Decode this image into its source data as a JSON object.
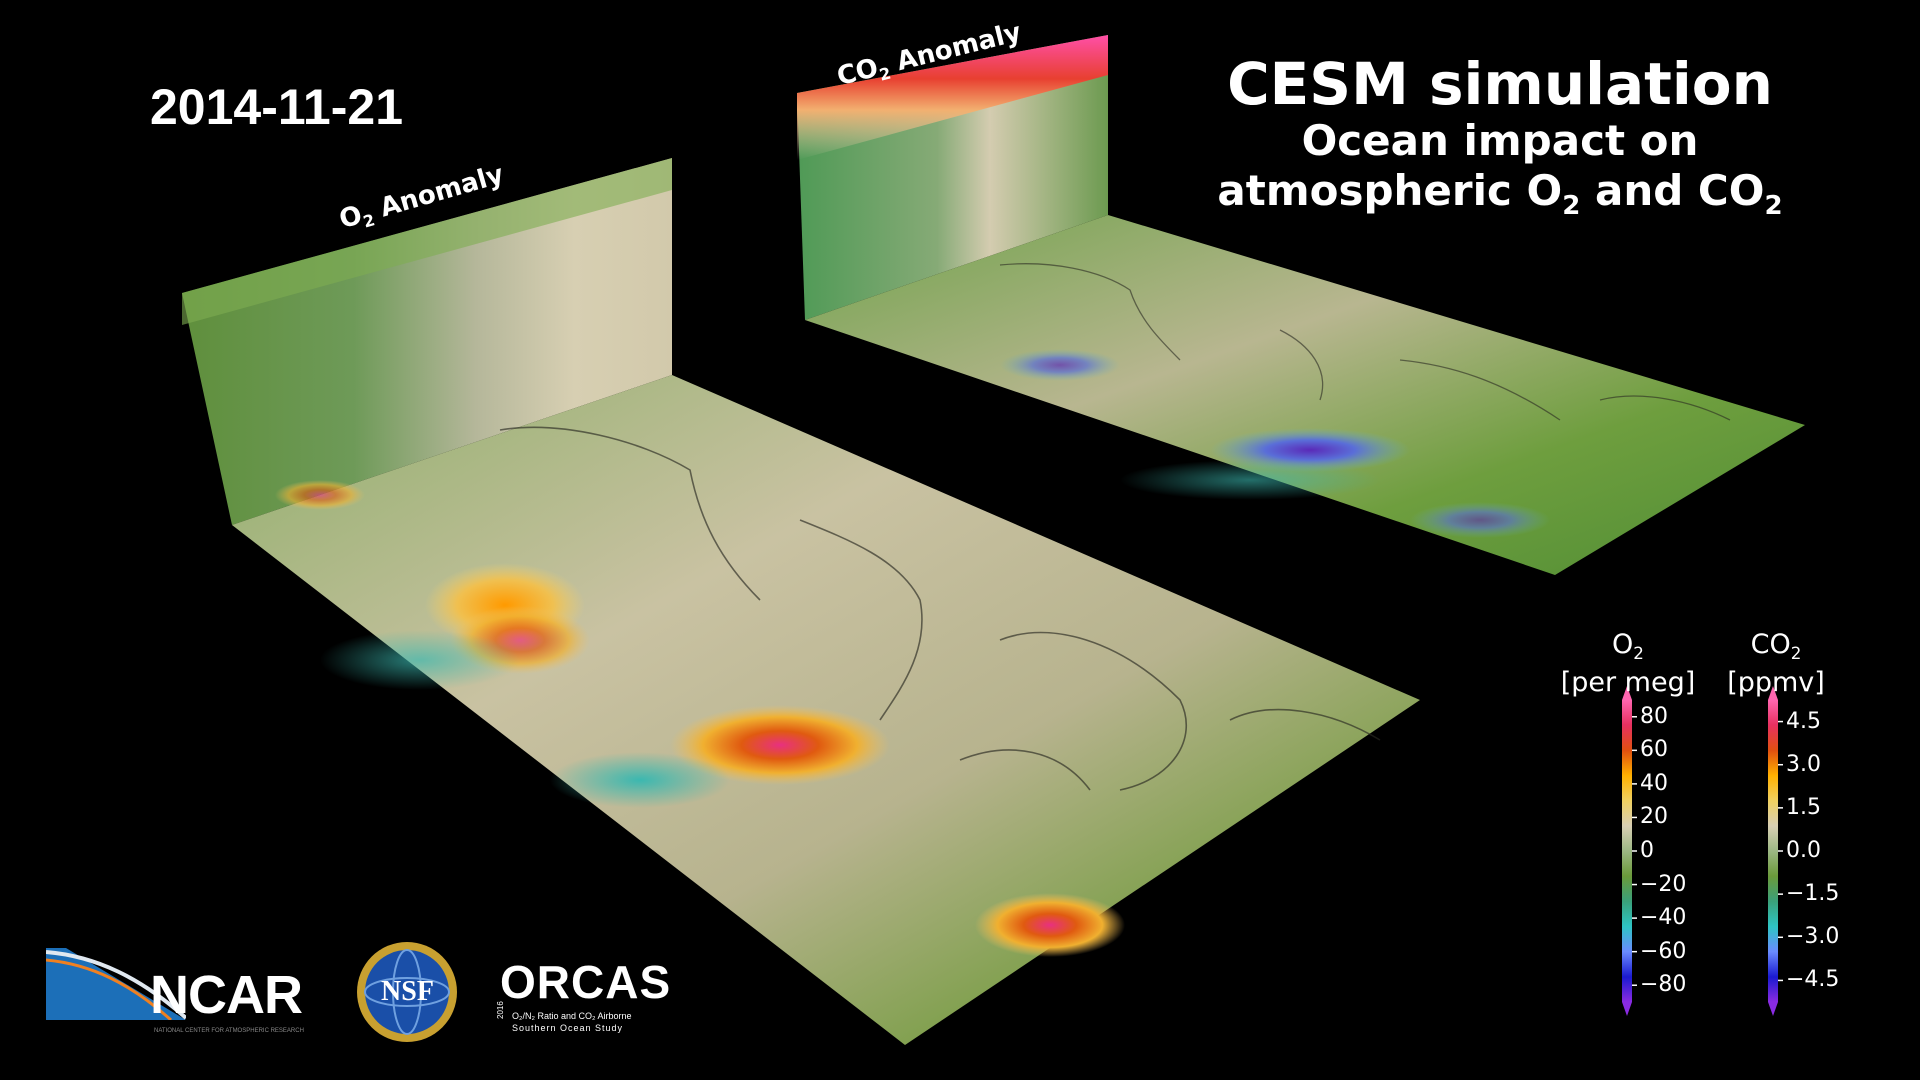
{
  "date": "2014-11-21",
  "title": {
    "line1": "CESM simulation",
    "line2": "Ocean impact on",
    "line3_pre": "atmospheric O",
    "line3_sub1": "2",
    "line3_mid": " and CO",
    "line3_sub2": "2"
  },
  "panels": {
    "o2": {
      "label_main": "O",
      "label_sub": "2",
      "label_rest": " Anomaly"
    },
    "co2": {
      "label_main": "CO",
      "label_sub": "2",
      "label_rest": " Anomaly"
    }
  },
  "colorbars": {
    "o2": {
      "name_main": "O",
      "name_sub": "2",
      "units": "[per meg]",
      "ticks": [
        "80",
        "60",
        "40",
        "20",
        "0",
        "−20",
        "−40",
        "−60",
        "−80"
      ]
    },
    "co2": {
      "name_main": "CO",
      "name_sub": "2",
      "units": "[ppmv]",
      "ticks": [
        "4.5",
        "3.0",
        "1.5",
        "0.0",
        "−1.5",
        "−3.0",
        "−4.5"
      ]
    },
    "palette": [
      "#8a2be2",
      "#1a1ad0",
      "#6a8cff",
      "#2ec4c4",
      "#3aa07a",
      "#6b9a3a",
      "#9cb884",
      "#d8cfb4",
      "#f0d060",
      "#ffb000",
      "#e05010",
      "#e83060",
      "#ff66b0"
    ]
  },
  "logos": {
    "ncar": {
      "text": "NCAR",
      "tagline": "NATIONAL CENTER FOR ATMOSPHERIC RESEARCH"
    },
    "nsf": {
      "text": "NSF"
    },
    "orcas": {
      "text": "ORCAS",
      "year": "2016",
      "line1": "O₂/N₂ Ratio and CO₂ Airborne",
      "line2": "Southern Ocean Study"
    }
  }
}
